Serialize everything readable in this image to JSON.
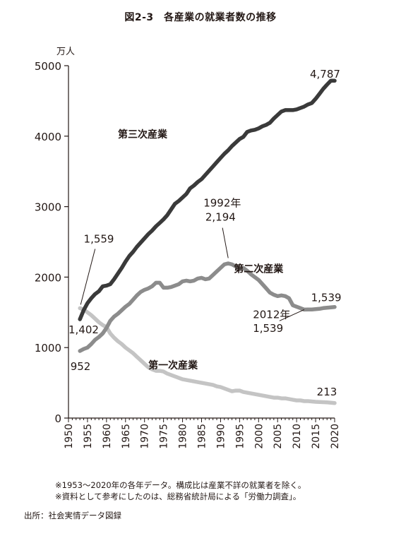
{
  "figure_title": "図2-3　各産業の就業者数の推移",
  "notes": [
    "※1953～2020年の各年データ。構成比は産業不詳の就業者を除く。",
    "※資料として参考にしたのは、総務省統計局による「労働力調査」。"
  ],
  "source": "出所：社会実情データ図録",
  "chart_data": {
    "type": "line",
    "y_unit": "万人",
    "ylim": [
      0,
      5000
    ],
    "xlim": [
      1950,
      2020
    ],
    "y_ticks": [
      "0",
      "1000",
      "2000",
      "3000",
      "4000",
      "5000"
    ],
    "x_ticks": [
      "1950",
      "1955",
      "1960",
      "1965",
      "1970",
      "1975",
      "1980",
      "1985",
      "1990",
      "1995",
      "2000",
      "2005",
      "2010",
      "2015",
      "2020"
    ],
    "series": [
      {
        "name": "第三次産業",
        "color": "#3a3a3a",
        "x": [
          1953,
          1954,
          1955,
          1956,
          1957,
          1958,
          1959,
          1960,
          1961,
          1962,
          1963,
          1964,
          1965,
          1966,
          1967,
          1968,
          1969,
          1970,
          1971,
          1972,
          1973,
          1974,
          1975,
          1976,
          1977,
          1978,
          1979,
          1980,
          1981,
          1982,
          1983,
          1984,
          1985,
          1986,
          1987,
          1988,
          1989,
          1990,
          1991,
          1992,
          1993,
          1994,
          1995,
          1996,
          1997,
          1998,
          1999,
          2000,
          2001,
          2002,
          2003,
          2004,
          2005,
          2006,
          2007,
          2008,
          2009,
          2010,
          2011,
          2012,
          2013,
          2014,
          2015,
          2016,
          2017,
          2018,
          2019,
          2020
        ],
        "y": [
          1402,
          1530,
          1630,
          1700,
          1760,
          1800,
          1870,
          1880,
          1900,
          1970,
          2050,
          2130,
          2220,
          2300,
          2360,
          2430,
          2490,
          2550,
          2610,
          2660,
          2720,
          2770,
          2820,
          2880,
          2960,
          3040,
          3080,
          3130,
          3180,
          3260,
          3300,
          3350,
          3390,
          3450,
          3510,
          3570,
          3630,
          3690,
          3750,
          3800,
          3860,
          3910,
          3960,
          3990,
          4060,
          4080,
          4090,
          4110,
          4140,
          4160,
          4190,
          4250,
          4300,
          4350,
          4370,
          4370,
          4370,
          4380,
          4400,
          4420,
          4450,
          4470,
          4530,
          4600,
          4670,
          4730,
          4787,
          4787
        ]
      },
      {
        "name": "第二次産業",
        "color": "#8c8c8c",
        "x": [
          1953,
          1954,
          1955,
          1956,
          1957,
          1958,
          1959,
          1960,
          1961,
          1962,
          1963,
          1964,
          1965,
          1966,
          1967,
          1968,
          1969,
          1970,
          1971,
          1972,
          1973,
          1974,
          1975,
          1976,
          1977,
          1978,
          1979,
          1980,
          1981,
          1982,
          1983,
          1984,
          1985,
          1986,
          1987,
          1988,
          1989,
          1990,
          1991,
          1992,
          1993,
          1994,
          1995,
          1996,
          1997,
          1998,
          1999,
          2000,
          2001,
          2002,
          2003,
          2004,
          2005,
          2006,
          2007,
          2008,
          2009,
          2010,
          2011,
          2012,
          2013,
          2014,
          2015,
          2016,
          2017,
          2018,
          2019,
          2020
        ],
        "y": [
          952,
          980,
          1000,
          1050,
          1110,
          1150,
          1200,
          1280,
          1380,
          1440,
          1480,
          1530,
          1580,
          1620,
          1680,
          1740,
          1790,
          1820,
          1840,
          1870,
          1920,
          1920,
          1850,
          1850,
          1860,
          1880,
          1900,
          1940,
          1950,
          1940,
          1950,
          1980,
          1990,
          1970,
          1980,
          2030,
          2080,
          2130,
          2180,
          2194,
          2180,
          2150,
          2120,
          2130,
          2090,
          2040,
          2000,
          1960,
          1900,
          1840,
          1780,
          1750,
          1730,
          1740,
          1730,
          1700,
          1600,
          1580,
          1560,
          1539,
          1540,
          1540,
          1545,
          1550,
          1560,
          1565,
          1570,
          1575
        ]
      },
      {
        "name": "第一次産業",
        "color": "#c4c4c4",
        "x": [
          1953,
          1954,
          1955,
          1956,
          1957,
          1958,
          1959,
          1960,
          1961,
          1962,
          1963,
          1964,
          1965,
          1966,
          1967,
          1968,
          1969,
          1970,
          1971,
          1972,
          1973,
          1974,
          1975,
          1976,
          1977,
          1978,
          1979,
          1980,
          1981,
          1982,
          1983,
          1984,
          1985,
          1986,
          1987,
          1988,
          1989,
          1990,
          1991,
          1992,
          1993,
          1994,
          1995,
          1996,
          1997,
          1998,
          1999,
          2000,
          2001,
          2002,
          2003,
          2004,
          2005,
          2006,
          2007,
          2008,
          2009,
          2010,
          2011,
          2012,
          2013,
          2014,
          2015,
          2016,
          2017,
          2018,
          2019,
          2020
        ],
        "y": [
          1559,
          1540,
          1500,
          1460,
          1410,
          1360,
          1320,
          1290,
          1200,
          1140,
          1090,
          1050,
          1000,
          960,
          920,
          870,
          820,
          770,
          720,
          690,
          670,
          670,
          660,
          630,
          610,
          590,
          570,
          550,
          540,
          530,
          520,
          510,
          500,
          490,
          480,
          470,
          450,
          440,
          420,
          400,
          380,
          390,
          390,
          370,
          360,
          350,
          340,
          330,
          320,
          310,
          300,
          290,
          290,
          280,
          280,
          270,
          260,
          250,
          250,
          240,
          240,
          235,
          230,
          228,
          225,
          222,
          218,
          213
        ]
      }
    ],
    "annotations": [
      {
        "text": "第三次産業",
        "x": 1963,
        "y": 3980,
        "bold": true
      },
      {
        "text": "第二次産業",
        "x": 1993.5,
        "y": 2070,
        "bold": true
      },
      {
        "text": "第一次産業",
        "x": 1971,
        "y": 700,
        "bold": true
      },
      {
        "text": "4,787",
        "x": 2013.5,
        "y": 4830
      },
      {
        "text": "1992年",
        "x": 1985.5,
        "y": 3000
      },
      {
        "text": "2,194",
        "x": 1986,
        "y": 2800
      },
      {
        "text": "1,559",
        "x": 1954,
        "y": 2490
      },
      {
        "text": "1,402",
        "x": 1950,
        "y": 1200
      },
      {
        "text": "952",
        "x": 1950.5,
        "y": 680
      },
      {
        "text": "1,539",
        "x": 2013.8,
        "y": 1660
      },
      {
        "text": "2012年",
        "x": 1998.5,
        "y": 1420
      },
      {
        "text": "1,539",
        "x": 1998.5,
        "y": 1220
      },
      {
        "text": "213",
        "x": 2015.3,
        "y": 320
      }
    ],
    "leaders": [
      {
        "from": [
          1992,
          2270
        ],
        "to": [
          1990.5,
          2700
        ]
      },
      {
        "from": [
          1953.2,
          1610
        ],
        "to": [
          1957,
          2400
        ]
      },
      {
        "from": [
          2012,
          1539
        ],
        "to": [
          2005.5,
          1380
        ]
      }
    ]
  }
}
